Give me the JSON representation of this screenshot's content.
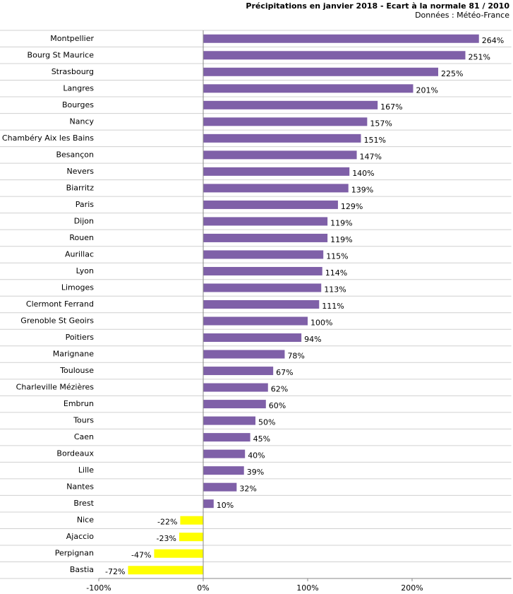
{
  "chart_data": {
    "type": "hbar",
    "title": "Précipitations en janvier 2018 - Ecart à la normale 81 / 2010",
    "subtitle": "Données : Météo-France",
    "categories": [
      "Montpellier",
      "Bourg St Maurice",
      "Strasbourg",
      "Langres",
      "Bourges",
      "Nancy",
      "Chambéry Aix les Bains",
      "Besançon",
      "Nevers",
      "Biarritz",
      "Paris",
      "Dijon",
      "Rouen",
      "Aurillac",
      "Lyon",
      "Limoges",
      "Clermont Ferrand",
      "Grenoble St Geoirs",
      "Poitiers",
      "Marignane",
      "Toulouse",
      "Charleville Mézières",
      "Embrun",
      "Tours",
      "Caen",
      "Bordeaux",
      "Lille",
      "Nantes",
      "Brest",
      "Nice",
      "Ajaccio",
      "Perpignan",
      "Bastia"
    ],
    "values": [
      264,
      251,
      225,
      201,
      167,
      157,
      151,
      147,
      140,
      139,
      129,
      119,
      119,
      115,
      114,
      113,
      111,
      100,
      94,
      78,
      67,
      62,
      60,
      50,
      45,
      40,
      39,
      32,
      10,
      -22,
      -23,
      -47,
      -72
    ],
    "value_labels": [
      "264%",
      "251%",
      "225%",
      "201%",
      "167%",
      "157%",
      "151%",
      "147%",
      "140%",
      "139%",
      "129%",
      "119%",
      "119%",
      "115%",
      "114%",
      "113%",
      "111%",
      "100%",
      "94%",
      "78%",
      "67%",
      "62%",
      "60%",
      "50%",
      "45%",
      "40%",
      "39%",
      "32%",
      "10%",
      "-22%",
      "-23%",
      "-47%",
      "-72%"
    ],
    "color": "#7f60a8",
    "negative_color": "#ffff00",
    "xlim": [
      -100,
      295
    ],
    "xticks": [
      {
        "value": -100,
        "label": "-100%"
      },
      {
        "value": 0,
        "label": "0%"
      },
      {
        "value": 100,
        "label": "100%"
      },
      {
        "value": 200,
        "label": "200%"
      }
    ]
  }
}
